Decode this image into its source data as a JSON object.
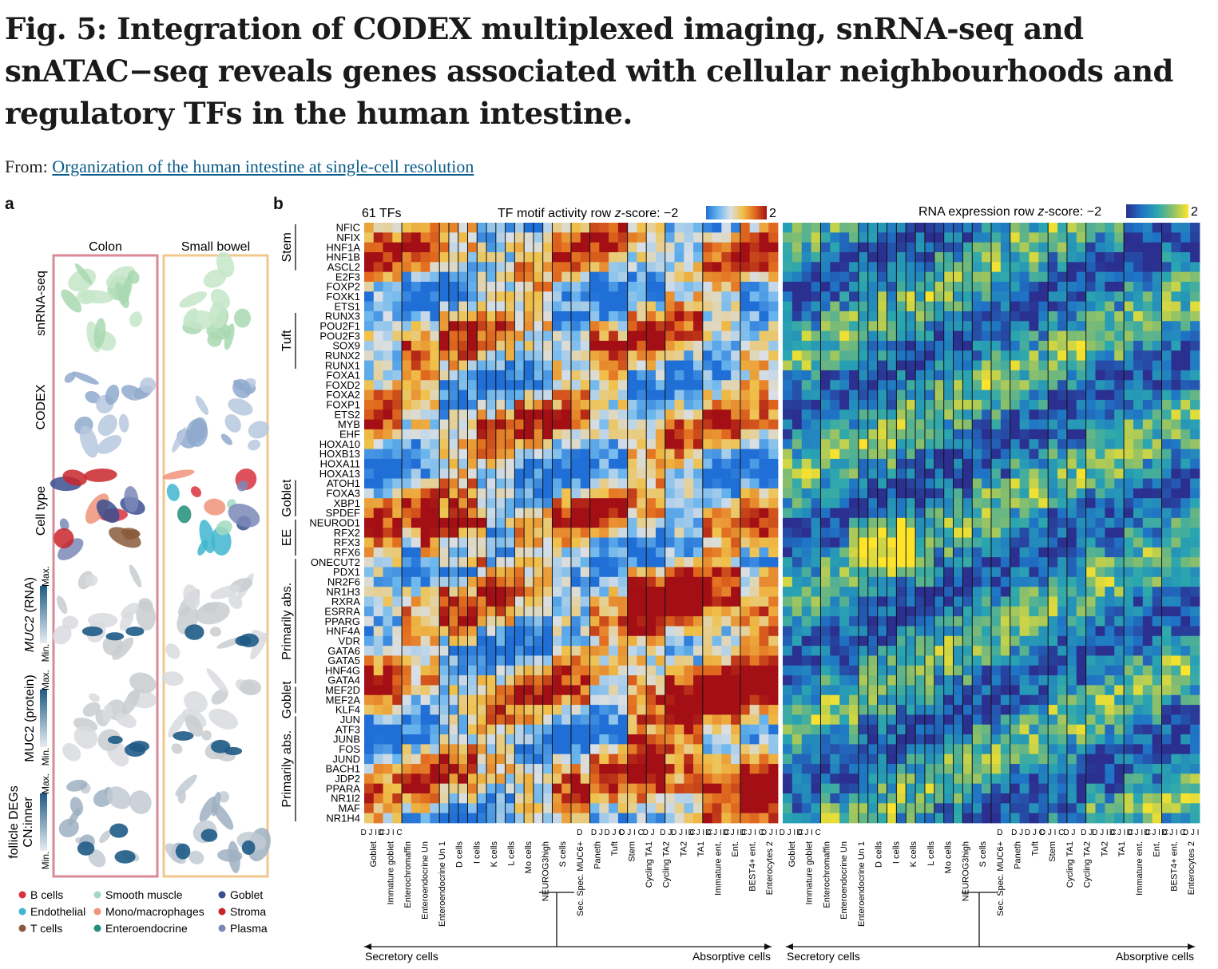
{
  "title": "Fig. 5: Integration of CODEX multiplexed imaging, snRNA-seq and snATAC−seq reveals genes associated with cellular neighbourhoods and regulatory TFs in the human intestine.",
  "from_label": "From:",
  "from_link": "Organization of the human intestine at single-cell resolution",
  "panel_a": {
    "letter": "a",
    "col_headers": [
      "Colon",
      "Small bowel"
    ],
    "row_labels": [
      {
        "main": "snRNA-seq"
      },
      {
        "main": "CODEX"
      },
      {
        "main": "Cell type"
      },
      {
        "gene": "MUC2",
        "main": " (RNA)",
        "min": "Min.",
        "max": "Max."
      },
      {
        "main": "MUC2 (protein)",
        "min": "Min.",
        "max": "Max."
      },
      {
        "main": "CN:inner",
        "main2": "follicle DEGs",
        "min": "Min.",
        "max": "Max."
      }
    ],
    "legend": [
      {
        "label": "B cells",
        "color": "#d8323f"
      },
      {
        "label": "Smooth muscle",
        "color": "#9fd9c0"
      },
      {
        "label": "Goblet",
        "color": "#3a4f8f"
      },
      {
        "label": "Endothelial",
        "color": "#3fb6d0"
      },
      {
        "label": "Mono/macrophages",
        "color": "#f0937a"
      },
      {
        "label": "Stroma",
        "color": "#c9262c"
      },
      {
        "label": "T cells",
        "color": "#8a5a3c"
      },
      {
        "label": "Enteroendocrine",
        "color": "#1f8f78"
      },
      {
        "label": "Plasma",
        "color": "#7b88b8"
      }
    ]
  },
  "panel_b": {
    "letter": "b",
    "tf_count": "61 TFs",
    "tf_scale_label": "TF motif activity row ",
    "tf_scale_z": "z",
    "tf_scale_suffix": "-score:",
    "tf_scale_min": "−2",
    "tf_scale_max": "2",
    "rna_scale_label": "RNA expression row ",
    "rna_scale_z": "z",
    "rna_scale_suffix": "-score:",
    "rna_scale_min": "−2",
    "rna_scale_max": "2",
    "tf_colors": [
      "#1f6fd6",
      "#6ab6ee",
      "#d9dfe6",
      "#f0c14a",
      "#e26b1f",
      "#a30f14"
    ],
    "rna_colors": [
      "#2b2f8f",
      "#1f74c6",
      "#2aa6b0",
      "#8cc06a",
      "#ffe52a"
    ],
    "genes": [
      "NFIC",
      "NFIX",
      "HNF1A",
      "HNF1B",
      "ASCL2",
      "E2F3",
      "FOXP2",
      "FOXK1",
      "ETS1",
      "RUNX3",
      "POU2F1",
      "POU2F3",
      "SOX9",
      "RUNX2",
      "RUNX1",
      "FOXA1",
      "FOXD2",
      "FOXA2",
      "FOXP1",
      "ETS2",
      "MYB",
      "EHF",
      "HOXA10",
      "HOXB13",
      "HOXA11",
      "HOXA13",
      "ATOH1",
      "FOXA3",
      "XBP1",
      "SPDEF",
      "NEUROD1",
      "RFX2",
      "RFX3",
      "RFX6",
      "ONECUT2",
      "PDX1",
      "NR2F6",
      "NR1H3",
      "RXRA",
      "ESRRA",
      "PPARG",
      "HNF4A",
      "VDR",
      "GATA6",
      "GATA5",
      "HNF4G",
      "GATA4",
      "MEF2D",
      "MEF2A",
      "KLF4",
      "JUN",
      "ATF3",
      "JUNB",
      "FOS",
      "JUND",
      "BACH1",
      "JDP2",
      "PPARA",
      "NR1I2",
      "MAF",
      "NR1H4"
    ],
    "groups": [
      {
        "label": "Stem",
        "start": 0,
        "end": 4
      },
      {
        "label": "Tuft",
        "start": 9,
        "end": 14
      },
      {
        "label": "Goblet",
        "start": 26,
        "end": 29
      },
      {
        "label": "EE",
        "start": 30,
        "end": 33
      },
      {
        "label": "Primarily abs.",
        "start": 34,
        "end": 46
      },
      {
        "label": "Goblet",
        "start": 47,
        "end": 49
      },
      {
        "label": "Primarily abs.",
        "start": 50,
        "end": 60
      }
    ],
    "celltypes": [
      {
        "label": "Goblet",
        "regions": [
          "D",
          "J",
          "I",
          "C"
        ]
      },
      {
        "label": "Immature goblet",
        "regions": [
          "D",
          "J",
          "I",
          "C"
        ]
      },
      {
        "label": "Enterochromaffin",
        "regions": []
      },
      {
        "label": "Enteroendocrine Un",
        "regions": []
      },
      {
        "label": "Enteroendocrine Un 1",
        "regions": []
      },
      {
        "label": "D cells",
        "regions": []
      },
      {
        "label": "I cells",
        "regions": []
      },
      {
        "label": "K cells",
        "regions": []
      },
      {
        "label": "L cells",
        "regions": []
      },
      {
        "label": "Mo cells",
        "regions": []
      },
      {
        "label": "NEUROG3high",
        "regions": []
      },
      {
        "label": "S cells",
        "regions": []
      },
      {
        "label": "Sec. Spec. MUC6+",
        "regions": [
          "D"
        ]
      },
      {
        "label": "Paneth",
        "regions": [
          "D",
          "J"
        ]
      },
      {
        "label": "Tuft",
        "regions": [
          "D",
          "J",
          "C"
        ]
      },
      {
        "label": "Stem",
        "regions": [
          "D",
          "J",
          "I",
          "C"
        ]
      },
      {
        "label": "Cycling TA1",
        "regions": [
          "D",
          "J"
        ]
      },
      {
        "label": "Cycling TA2",
        "regions": [
          "D",
          "J"
        ]
      },
      {
        "label": "TA2",
        "regions": [
          "D",
          "J",
          "I",
          "C"
        ]
      },
      {
        "label": "TA1",
        "regions": [
          "D",
          "J",
          "I",
          "C"
        ]
      },
      {
        "label": "Immature ent.",
        "regions": [
          "D",
          "J",
          "I",
          "C"
        ]
      },
      {
        "label": "Ent.",
        "regions": [
          "D",
          "J",
          "I",
          "C"
        ]
      },
      {
        "label": "BEST4+ ent.",
        "regions": [
          "D",
          "J",
          "I",
          "C"
        ]
      },
      {
        "label": "Enterocytes 2",
        "regions": [
          "D",
          "J",
          "I"
        ]
      }
    ],
    "secretory_label": "Secretory cells",
    "absorptive_label": "Absorptive cells"
  }
}
